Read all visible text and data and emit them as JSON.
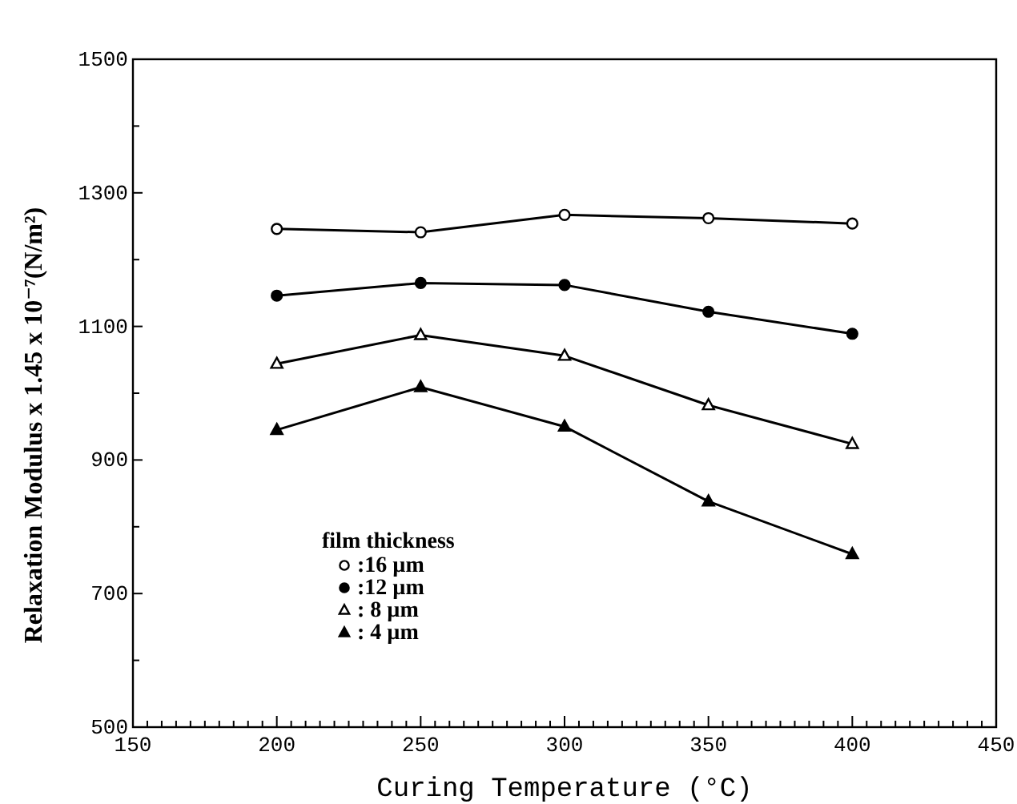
{
  "chart_data": {
    "type": "line",
    "xlabel": "Curing Temperature (°C)",
    "ylabel": "Relaxation Modulus x 1.45 x 10⁻⁷(N/m²)",
    "legend_title": "film thickness",
    "legend": "bottom left",
    "grid": false,
    "line_style": "solid",
    "x": [
      200,
      250,
      300,
      350,
      400
    ],
    "xlim": [
      150,
      450
    ],
    "ylim": [
      500,
      1500
    ],
    "xticks": [
      150,
      {
        "value": 155,
        "label": null
      },
      {
        "value": 160,
        "label": null
      },
      {
        "value": 165,
        "label": null
      },
      {
        "value": 170,
        "label": null
      },
      {
        "value": 175,
        "label": null
      },
      {
        "value": 180,
        "label": null
      },
      {
        "value": 185,
        "label": null
      },
      {
        "value": 190,
        "label": null
      },
      {
        "value": 195,
        "label": null
      },
      200,
      {
        "value": 205,
        "label": null
      },
      {
        "value": 210,
        "label": null
      },
      {
        "value": 215,
        "label": null
      },
      {
        "value": 220,
        "label": null
      },
      {
        "value": 225,
        "label": null
      },
      {
        "value": 230,
        "label": null
      },
      {
        "value": 235,
        "label": null
      },
      {
        "value": 240,
        "label": null
      },
      {
        "value": 245,
        "label": null
      },
      250,
      {
        "value": 255,
        "label": null
      },
      {
        "value": 260,
        "label": null
      },
      {
        "value": 265,
        "label": null
      },
      {
        "value": 270,
        "label": null
      },
      {
        "value": 275,
        "label": null
      },
      {
        "value": 280,
        "label": null
      },
      {
        "value": 285,
        "label": null
      },
      {
        "value": 290,
        "label": null
      },
      {
        "value": 295,
        "label": null
      },
      300,
      {
        "value": 305,
        "label": null
      },
      {
        "value": 310,
        "label": null
      },
      {
        "value": 315,
        "label": null
      },
      {
        "value": 320,
        "label": null
      },
      {
        "value": 325,
        "label": null
      },
      {
        "value": 330,
        "label": null
      },
      {
        "value": 335,
        "label": null
      },
      {
        "value": 340,
        "label": null
      },
      {
        "value": 345,
        "label": null
      },
      350,
      {
        "value": 355,
        "label": null
      },
      {
        "value": 360,
        "label": null
      },
      {
        "value": 365,
        "label": null
      },
      {
        "value": 370,
        "label": null
      },
      {
        "value": 375,
        "label": null
      },
      {
        "value": 380,
        "label": null
      },
      {
        "value": 385,
        "label": null
      },
      {
        "value": 390,
        "label": null
      },
      {
        "value": 395,
        "label": null
      },
      400,
      {
        "value": 405,
        "label": null
      },
      {
        "value": 410,
        "label": null
      },
      {
        "value": 415,
        "label": null
      },
      {
        "value": 420,
        "label": null
      },
      {
        "value": 425,
        "label": null
      },
      {
        "value": 430,
        "label": null
      },
      {
        "value": 435,
        "label": null
      },
      {
        "value": 440,
        "label": null
      },
      {
        "value": 445,
        "label": null
      },
      450
    ],
    "yticks": [
      500,
      {
        "value": 600,
        "label": null
      },
      700,
      {
        "value": 800,
        "label": null
      },
      900,
      {
        "value": 1000,
        "label": null
      },
      1100,
      {
        "value": 1200,
        "label": null
      },
      1300,
      {
        "value": 1400,
        "label": null
      },
      1500
    ],
    "series": [
      {
        "name": ":16 µm",
        "color": "#000000",
        "marker": "circle",
        "values": [
          1246,
          1241,
          1267,
          1262,
          1254
        ]
      },
      {
        "name": ":12 µm",
        "color": "#000000",
        "marker": "circle",
        "values": [
          1146,
          1165,
          1162,
          1122,
          1089
        ]
      },
      {
        "name": ": 8 µm",
        "color": "#000000",
        "marker": "triangle",
        "values": [
          1044,
          1087,
          1056,
          982,
          924
        ]
      },
      {
        "name": ": 4 µm",
        "color": "#000000",
        "marker": "triangle",
        "values": [
          945,
          1009,
          950,
          838,
          759
        ]
      }
    ]
  }
}
